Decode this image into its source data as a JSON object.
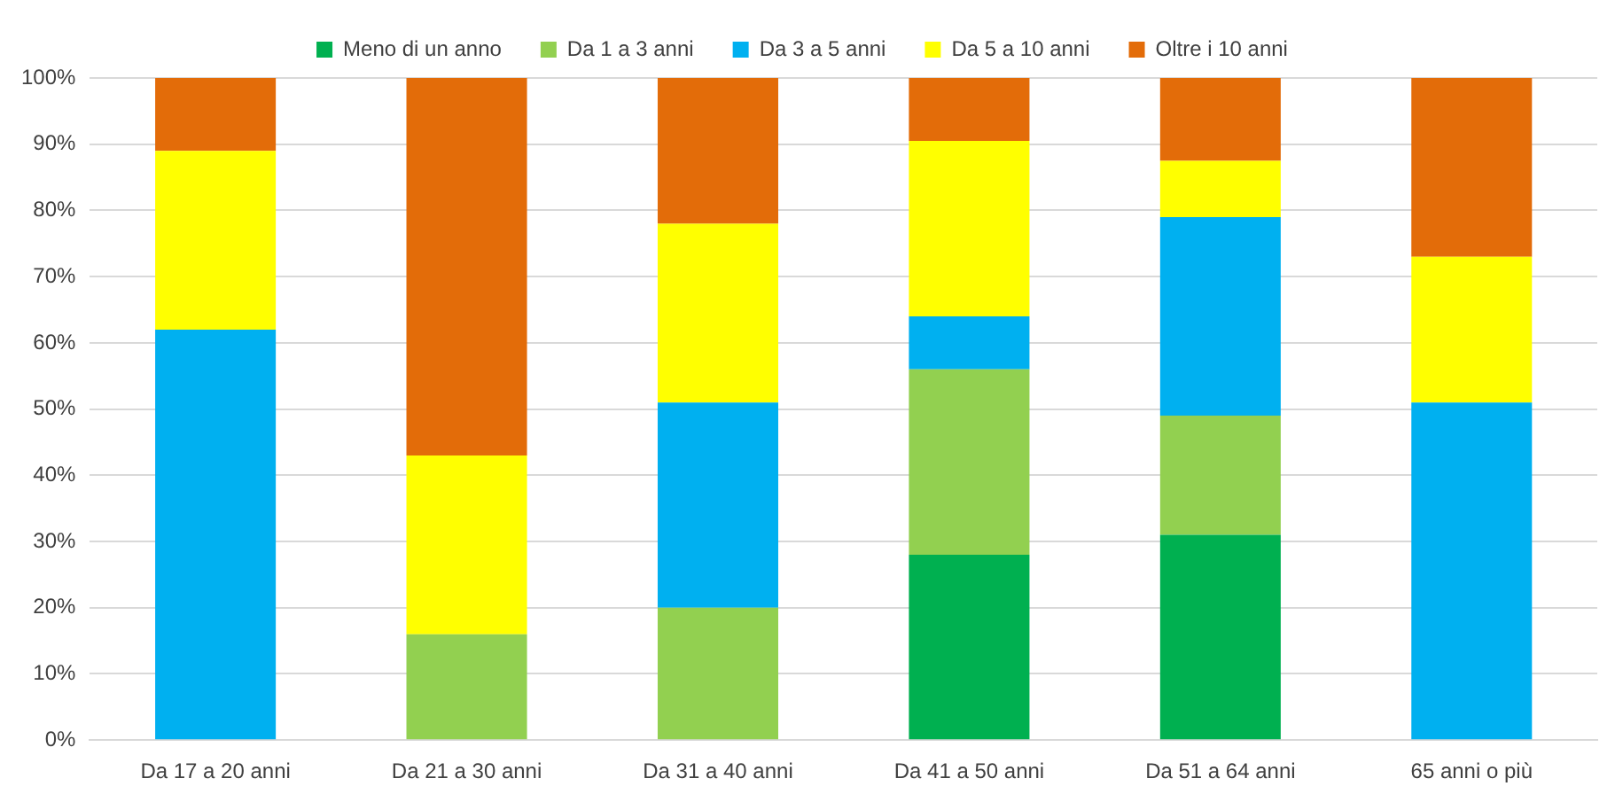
{
  "chart_data": {
    "type": "bar",
    "stacked": true,
    "categories": [
      "Da 17 a 20 anni",
      "Da 21 a 30 anni",
      "Da 31 a 40 anni",
      "Da 41 a 50 anni",
      "Da 51 a 64 anni",
      "65 anni o più"
    ],
    "series": [
      {
        "name": "Meno di un anno",
        "color": "#00b050",
        "values": [
          0,
          0,
          0,
          28,
          31,
          0
        ]
      },
      {
        "name": "Da 1 a 3 anni",
        "color": "#92d050",
        "values": [
          0,
          16,
          20,
          28,
          18,
          0
        ]
      },
      {
        "name": "Da 3 a 5 anni",
        "color": "#00b0f0",
        "values": [
          62,
          0,
          31,
          8,
          30,
          51
        ]
      },
      {
        "name": "Da 5 a 10 anni",
        "color": "#ffff00",
        "values": [
          27,
          27,
          27,
          26.5,
          8.5,
          22
        ]
      },
      {
        "name": "Oltre i 10 anni",
        "color": "#e36c09",
        "values": [
          11,
          57,
          22,
          9.5,
          12.5,
          27
        ]
      }
    ],
    "ylim": [
      0,
      100
    ],
    "yticks": [
      {
        "value": 0,
        "label": "0%"
      },
      {
        "value": 10,
        "label": "10%"
      },
      {
        "value": 20,
        "label": "20%"
      },
      {
        "value": 30,
        "label": "30%"
      },
      {
        "value": 40,
        "label": "40%"
      },
      {
        "value": 50,
        "label": "50%"
      },
      {
        "value": 60,
        "label": "60%"
      },
      {
        "value": 70,
        "label": "70%"
      },
      {
        "value": 80,
        "label": "80%"
      },
      {
        "value": 90,
        "label": "90%"
      },
      {
        "value": 100,
        "label": "100%"
      }
    ],
    "grid": "y",
    "legend": "top"
  }
}
